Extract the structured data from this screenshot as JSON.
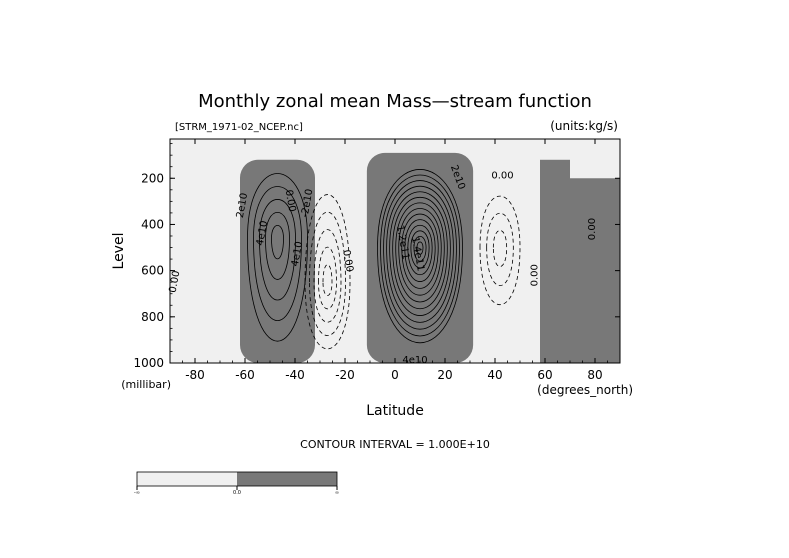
{
  "chart_data": {
    "type": "heatmap",
    "title": "Monthly zonal mean Mass—stream function",
    "file_label": "[STRM_1971-02_NCEP.nc]",
    "units_label": "(units:kg/s)",
    "xlabel": "Latitude",
    "x_unit_label": "(degrees_north)",
    "ylabel": "Level",
    "y_unit_label": "(millibar)",
    "footer": "CONTOUR INTERVAL = 1.000E+10",
    "xlim": [
      -90,
      90
    ],
    "ylim": [
      1000,
      30
    ],
    "xticks": [
      -80,
      -60,
      -40,
      -20,
      0,
      20,
      40,
      60,
      80
    ],
    "yticks": [
      200,
      400,
      600,
      800,
      1000
    ],
    "colorbar": {
      "ticks": [
        "-∞",
        "0.0",
        "∞"
      ],
      "colors": [
        "#f0f0f0",
        "#787878"
      ]
    },
    "contour_interval": 10000000000.0,
    "cells": [
      {
        "name": "southern-clockwise",
        "sign": "positive",
        "center_lat": -47,
        "center_level": 460,
        "peak": 50000000000.0,
        "lat_halfwidth": 12,
        "top": 120,
        "bottom": 1000
      },
      {
        "name": "southern-ferrel",
        "sign": "negative",
        "center_lat": -27,
        "center_level": 650,
        "peak": -50000000000.0,
        "lat_halfwidth": 9,
        "top": 190,
        "bottom": 1000
      },
      {
        "name": "hadley-main",
        "sign": "positive",
        "center_lat": 10,
        "center_level": 500,
        "peak": 140000000000.0,
        "lat_halfwidth": 17,
        "top": 90,
        "bottom": 1000
      },
      {
        "name": "northern-ferrel",
        "sign": "negative",
        "center_lat": 42,
        "center_level": 500,
        "peak": -30000000000.0,
        "lat_halfwidth": 8,
        "top": 230,
        "bottom": 800
      }
    ],
    "contour_labels": [
      {
        "text": "2e10",
        "lat": -60,
        "level": 320,
        "angle": -80
      },
      {
        "text": "4e10",
        "lat": -52,
        "level": 440,
        "angle": -80
      },
      {
        "text": "0.00",
        "lat": -43,
        "level": 300,
        "angle": 80
      },
      {
        "text": "-2e10",
        "lat": -34,
        "level": 310,
        "angle": -80
      },
      {
        "text": "4e10",
        "lat": -38,
        "level": 530,
        "angle": -80
      },
      {
        "text": "0.00",
        "lat": -20,
        "level": 560,
        "angle": 80
      },
      {
        "text": "1.2e11",
        "lat": 2,
        "level": 480,
        "angle": 80
      },
      {
        "text": "1.4e11",
        "lat": 8,
        "level": 530,
        "angle": 80
      },
      {
        "text": "2e10",
        "lat": 24,
        "level": 200,
        "angle": 70
      },
      {
        "text": "4e10",
        "lat": 8,
        "level": 1000,
        "angle": 0
      },
      {
        "text": "0.00",
        "lat": 43,
        "level": 200,
        "angle": 0
      },
      {
        "text": "0.00",
        "lat": 57,
        "level": 620,
        "angle": -90
      },
      {
        "text": "0.00",
        "lat": 80,
        "level": 420,
        "angle": -90
      },
      {
        "text": "0.00",
        "lat": -87,
        "level": 650,
        "angle": -80
      }
    ]
  }
}
